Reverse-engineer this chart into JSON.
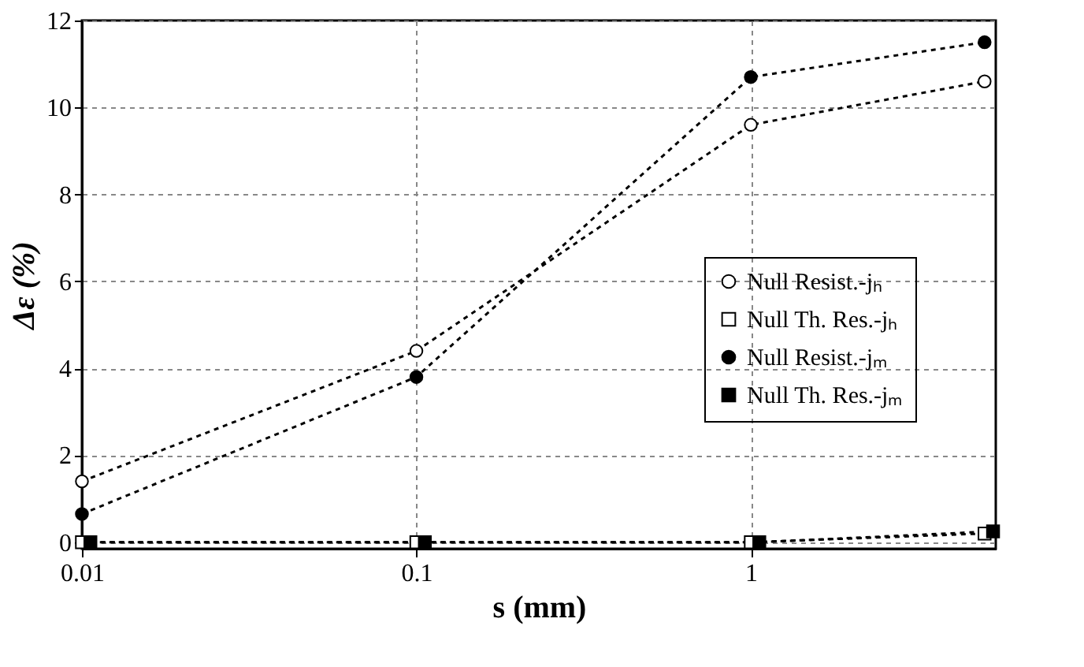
{
  "chart_data": {
    "type": "line",
    "xlabel": "s (mm)",
    "ylabel": "Δε (%)",
    "x": [
      0.01,
      0.1,
      1,
      5
    ],
    "xlim": [
      0.01,
      5.4
    ],
    "xticks": [
      0.01,
      0.1,
      1
    ],
    "log": "x",
    "ylim": [
      -0.15,
      12
    ],
    "yticks": [
      0,
      2,
      4,
      6,
      8,
      10,
      12
    ],
    "grid": true,
    "legend": "right",
    "line_style": "dotted",
    "series": [
      {
        "name": "Null Resist.-jₕ",
        "color": "#000000",
        "marker": "circle-open",
        "values": [
          1.4,
          4.4,
          9.6,
          10.6
        ]
      },
      {
        "name": "Null Th. Res.-jₕ",
        "color": "#000000",
        "marker": "square-open",
        "values": [
          0,
          0,
          0,
          0.2
        ]
      },
      {
        "name": "Null Resist.-jₘ",
        "color": "#000000",
        "marker": "circle",
        "values": [
          0.65,
          3.8,
          10.7,
          11.5
        ]
      },
      {
        "name": "Null Th. Res.-jₘ",
        "color": "#000000",
        "marker": "square",
        "x": [
          0.0106,
          0.106,
          1.06,
          5.3
        ],
        "values": [
          0,
          0,
          0,
          0.25
        ]
      }
    ]
  }
}
